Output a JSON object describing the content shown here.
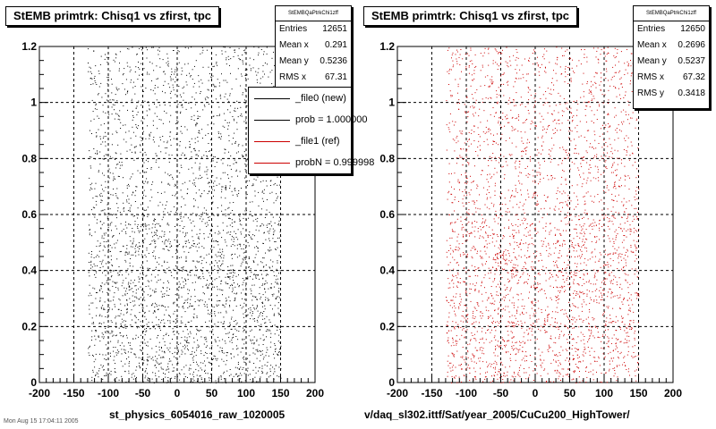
{
  "chart_data": [
    {
      "type": "scatter",
      "title": "StEMB primtrk: Chisq1  vs zfirst, tpc",
      "xlim": [
        -200,
        200
      ],
      "ylim": [
        0,
        1.2
      ],
      "x_ticks": [
        "-200",
        "-150",
        "-100",
        "-50",
        "0",
        "50",
        "100",
        "150",
        "200"
      ],
      "y_ticks": [
        "0",
        "0.2",
        "0.4",
        "0.6",
        "0.8",
        "1",
        "1.2"
      ],
      "grid": true,
      "point_color": "#000000",
      "series": [
        {
          "name": "_file0 (new)",
          "points_approx": {
            "x_range": [
              -130,
              150
            ],
            "y_range": [
              0,
              1.2
            ],
            "entries": 12651
          }
        }
      ],
      "stats": {
        "name": "StEMBQaPtrkChi1zff",
        "rows": [
          {
            "label": "Entries",
            "value": "12651"
          },
          {
            "label": "Mean x",
            "value": "0.291"
          },
          {
            "label": "Mean y",
            "value": "0.5236"
          },
          {
            "label": "RMS x",
            "value": "67.31"
          }
        ]
      },
      "legend": {
        "position": "top-right",
        "entries": [
          {
            "label": "_file0 (new)",
            "color": "#000000"
          },
          {
            "label": "prob = 1.000000",
            "color": "#000000"
          },
          {
            "label": "_file1 (ref)",
            "color": "#cc0000"
          },
          {
            "label": "probN = 0.999998",
            "color": "#cc0000"
          }
        ]
      },
      "footer": "st_physics_6054016_raw_1020005"
    },
    {
      "type": "scatter",
      "title": "StEMB primtrk: Chisq1  vs zfirst, tpc",
      "xlim": [
        -200,
        200
      ],
      "ylim": [
        0,
        1.2
      ],
      "x_ticks": [
        "-200",
        "-150",
        "-100",
        "-50",
        "0",
        "50",
        "100",
        "150",
        "200"
      ],
      "y_ticks": [
        "0",
        "0.2",
        "0.4",
        "0.6",
        "0.8",
        "1",
        "1.2"
      ],
      "grid": true,
      "point_color": "#cc0000",
      "series": [
        {
          "name": "_file1 (ref)",
          "points_approx": {
            "x_range": [
              -130,
              150
            ],
            "y_range": [
              0,
              1.2
            ],
            "entries": 12650
          }
        }
      ],
      "stats": {
        "name": "StEMBQaPtrkChi1zff",
        "rows": [
          {
            "label": "Entries",
            "value": "12650"
          },
          {
            "label": "Mean x",
            "value": "0.2696"
          },
          {
            "label": "Mean y",
            "value": "0.5237"
          },
          {
            "label": "RMS x",
            "value": "67.32"
          },
          {
            "label": "RMS y",
            "value": "0.3418"
          }
        ]
      },
      "footer": "v/daq_sl302.ittf/Sat/year_2005/CuCu200_HighTower/"
    }
  ],
  "corner_text": "Mon Aug 15 17:04:11 2005"
}
